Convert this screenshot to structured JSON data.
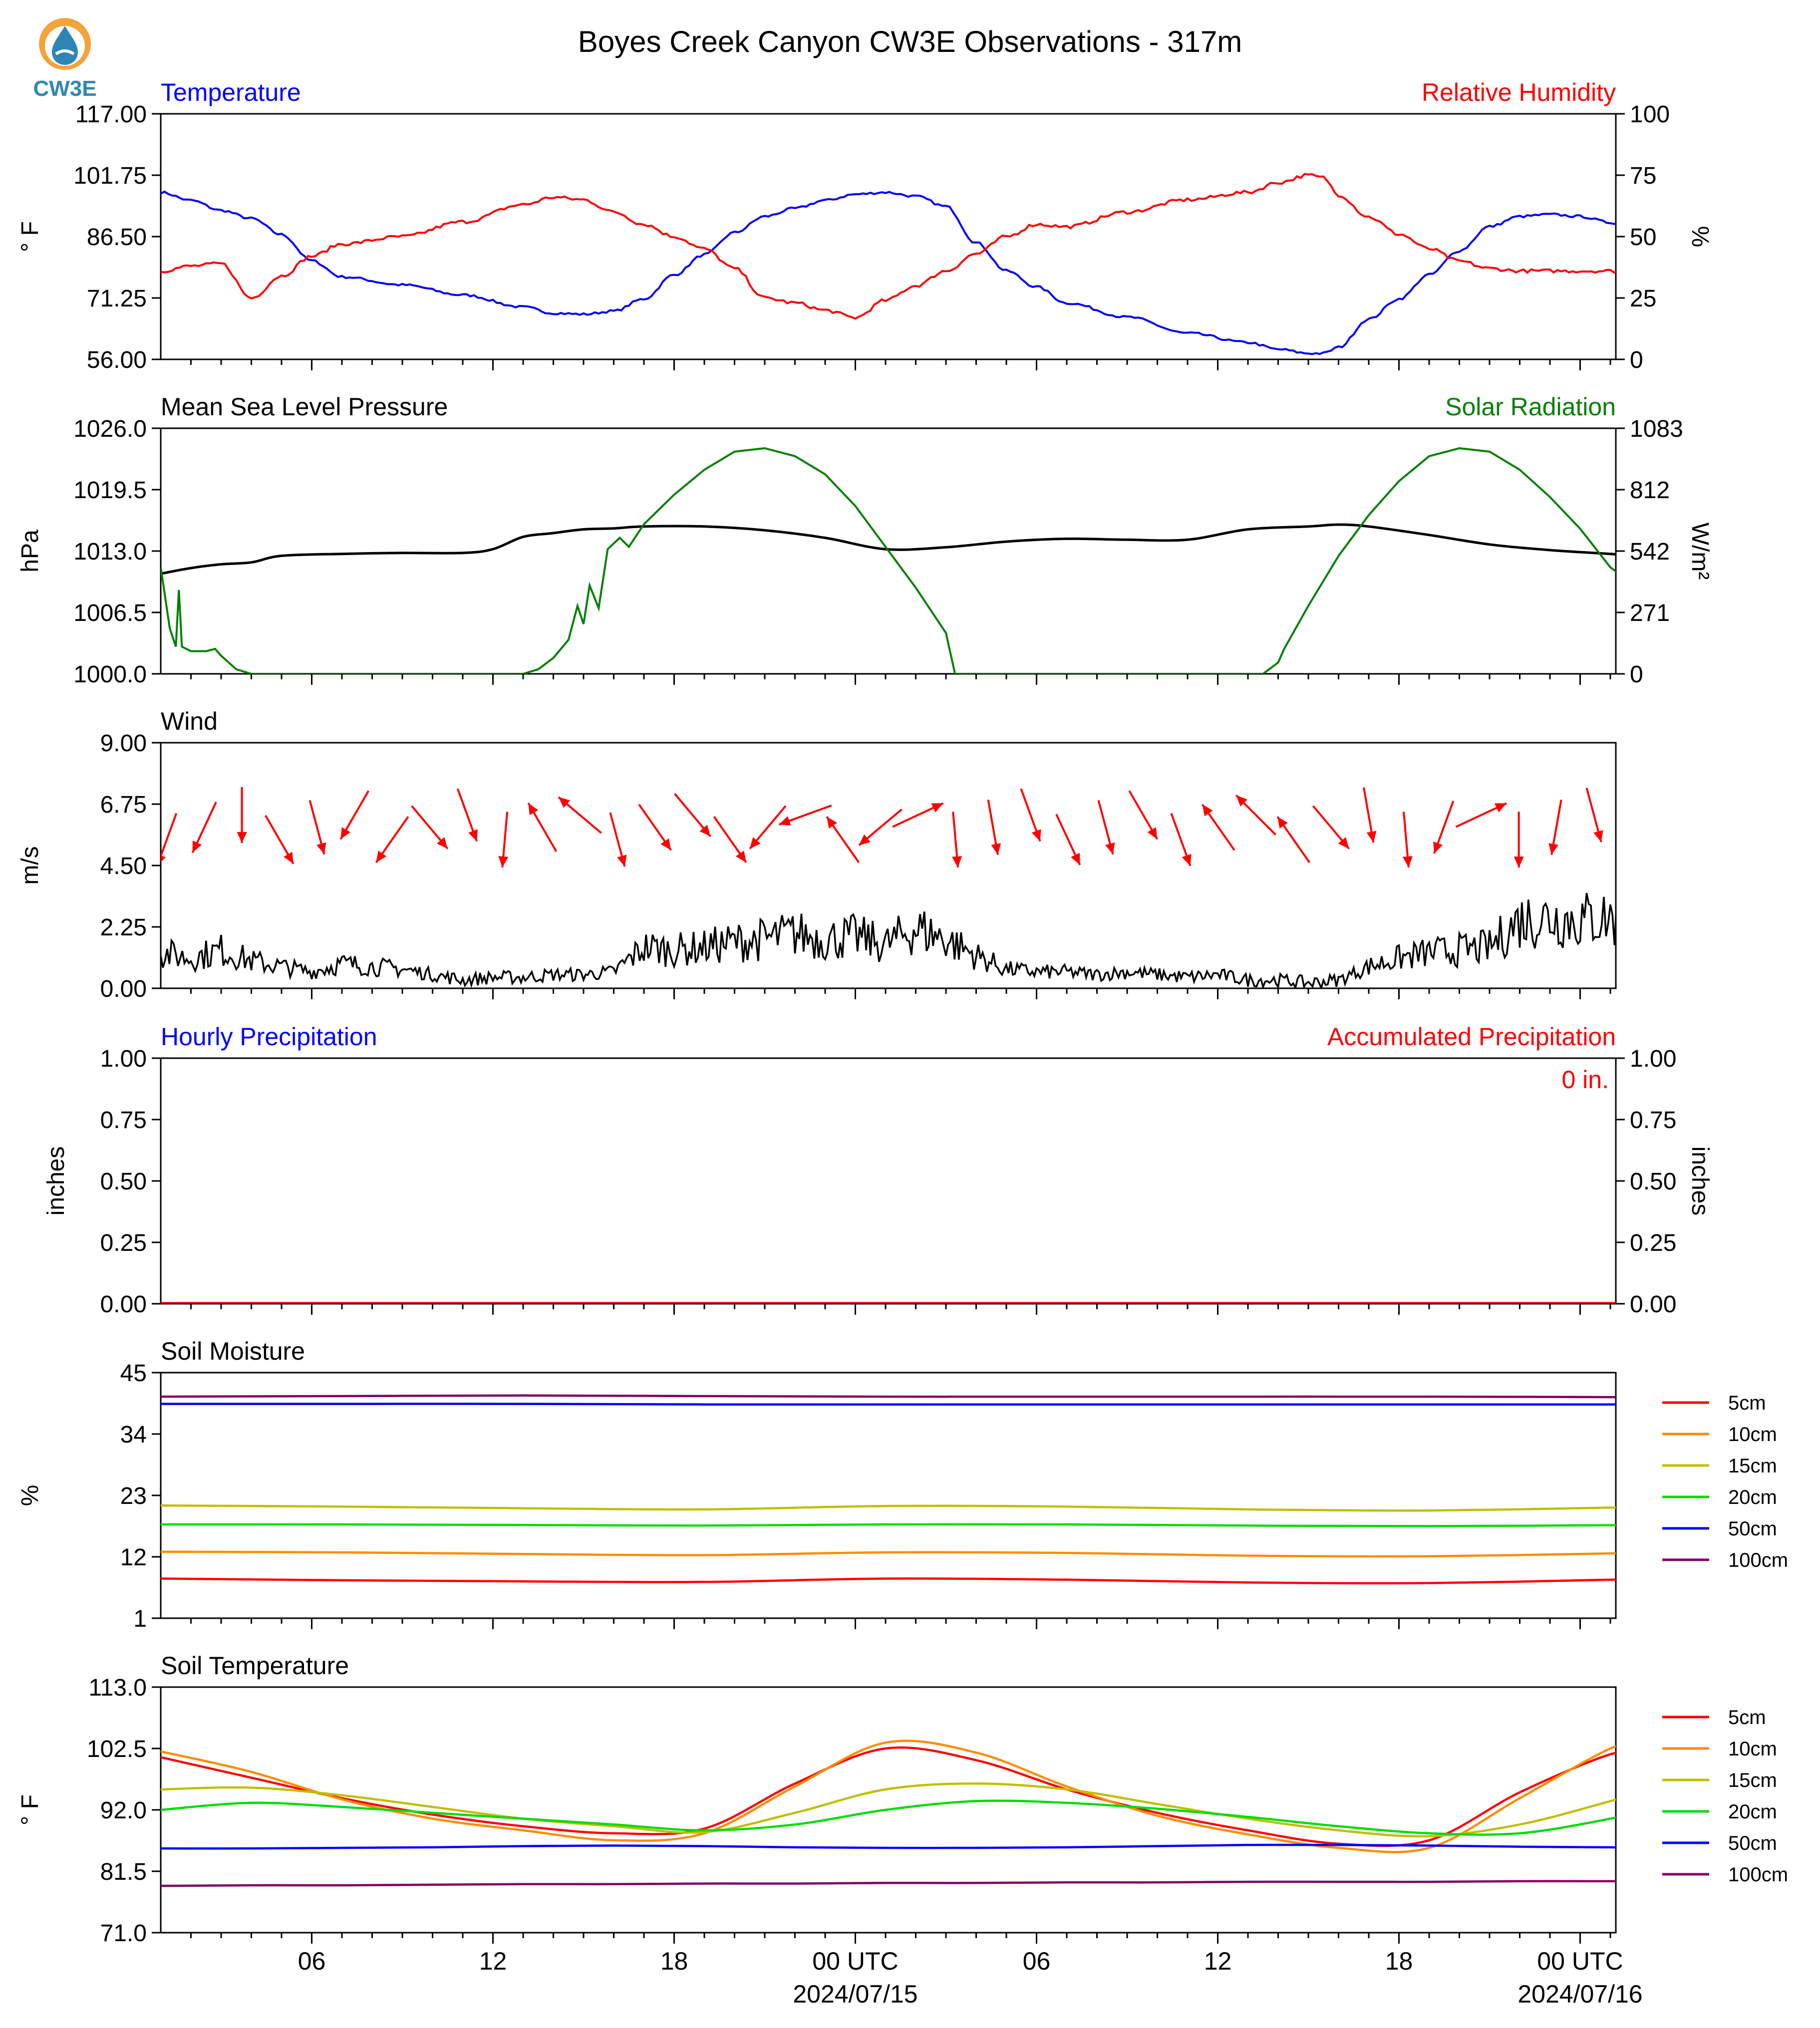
{
  "title": "Boyes Creek Canyon CW3E Observations - 317m",
  "logo": {
    "text": "CW3E",
    "icon": "cw3e-water-drop-logo",
    "colors": {
      "ring": "#f2a33a",
      "drop": "#2f86b6",
      "text": "#2f86b6"
    }
  },
  "x_axis": {
    "ticks": [
      "06",
      "12",
      "18",
      "00 UTC",
      "06",
      "12",
      "18",
      "00 UTC"
    ],
    "date_labels": [
      "2024/07/15",
      "2024/07/16"
    ]
  },
  "colors": {
    "temperature": "#0000ff",
    "humidity": "#ff0000",
    "pressure": "#000000",
    "solar": "#008000",
    "wind": "#000000",
    "wind_barb": "#ff0000"
  },
  "chart_data": [
    {
      "type": "line",
      "name": "temperature-humidity",
      "title_left": "Temperature",
      "title_right": "Relative Humidity",
      "ylabel_left": "° F",
      "ylabel_right": "%",
      "yticks_left": [
        "117.00",
        "101.75",
        "86.50",
        "71.25",
        "56.00"
      ],
      "yticks_right": [
        "100",
        "75",
        "50",
        "25",
        "0"
      ],
      "ylim_left": [
        56,
        117
      ],
      "ylim_right": [
        0,
        100
      ],
      "x_hours": [
        0,
        1,
        2,
        3,
        4,
        5,
        6,
        8,
        10,
        12,
        13,
        14,
        15,
        16,
        17,
        18,
        19,
        20,
        21,
        22,
        23,
        24,
        25,
        26,
        27,
        28,
        29,
        30,
        32,
        34,
        36,
        37,
        38,
        38.5,
        39,
        40,
        41,
        42,
        43,
        44,
        45,
        46,
        47,
        48,
        48.9
      ],
      "series": [
        {
          "name": "Temperature",
          "axis": "left",
          "values": [
            97.5,
            95.5,
            93,
            91,
            87,
            80.5,
            76.5,
            74.5,
            72,
            69,
            67.5,
            67.2,
            68,
            71,
            77,
            82,
            87.5,
            91.5,
            93.5,
            95.5,
            97,
            97.5,
            96.5,
            94,
            85,
            78,
            74,
            70,
            66.5,
            62.5,
            60.2,
            58.5,
            57.5,
            57.5,
            59,
            66,
            71,
            77,
            83,
            89,
            91.5,
            92,
            91.5,
            90,
            88.5
          ]
        },
        {
          "name": "Relative Humidity",
          "axis": "right",
          "values": [
            36,
            38,
            39,
            25,
            34,
            42,
            47,
            50,
            56,
            63,
            66,
            65,
            60,
            55,
            50,
            45,
            37,
            25,
            23,
            20,
            17,
            24,
            30,
            36,
            43,
            50,
            55,
            54,
            60,
            65,
            68,
            72,
            75,
            74,
            67,
            58,
            51,
            45,
            40,
            37,
            36,
            36,
            36,
            36,
            36
          ]
        }
      ]
    },
    {
      "type": "line",
      "name": "pressure-solar",
      "title_left": "Mean Sea Level Pressure",
      "title_right": "Solar Radiation",
      "ylabel_left": "hPa",
      "ylabel_right": "W/m²",
      "yticks_left": [
        "1026.0",
        "1019.5",
        "1013.0",
        "1006.5",
        "1000.0"
      ],
      "yticks_right": [
        "1083",
        "812",
        "542",
        "271",
        "0"
      ],
      "ylim_left": [
        1000,
        1026
      ],
      "ylim_right": [
        0,
        1083
      ],
      "x_hours": [
        0,
        1,
        2,
        3,
        4,
        6,
        8,
        10,
        11,
        12,
        13,
        14,
        15,
        16,
        18,
        20,
        22,
        24,
        26,
        28,
        30,
        32,
        34,
        36,
        38,
        39,
        40,
        42,
        44,
        46,
        48,
        48.9
      ],
      "series": [
        {
          "name": "Mean Sea Level Pressure",
          "axis": "left",
          "values": [
            1010.6,
            1011.2,
            1011.6,
            1011.8,
            1012.5,
            1012.7,
            1012.8,
            1012.8,
            1013.2,
            1014.5,
            1014.9,
            1015.3,
            1015.4,
            1015.6,
            1015.6,
            1015.2,
            1014.4,
            1013.2,
            1013.4,
            1014.0,
            1014.3,
            1014.2,
            1014.2,
            1015.3,
            1015.6,
            1015.8,
            1015.6,
            1014.7,
            1013.7,
            1013.1,
            1012.7,
            1012.5
          ]
        },
        {
          "name": "Solar Radiation",
          "axis": "right",
          "points": [
            [
              0,
              470
            ],
            [
              0.3,
              200
            ],
            [
              0.5,
              120
            ],
            [
              0.6,
              370
            ],
            [
              0.7,
              120
            ],
            [
              1,
              100
            ],
            [
              1.5,
              100
            ],
            [
              1.8,
              110
            ],
            [
              2,
              80
            ],
            [
              2.5,
              20
            ],
            [
              3,
              0
            ],
            [
              12,
              0
            ],
            [
              12.5,
              20
            ],
            [
              13,
              70
            ],
            [
              13.5,
              150
            ],
            [
              13.8,
              300
            ],
            [
              14,
              220
            ],
            [
              14.2,
              390
            ],
            [
              14.5,
              290
            ],
            [
              14.8,
              550
            ],
            [
              15.2,
              600
            ],
            [
              15.5,
              560
            ],
            [
              16,
              660
            ],
            [
              17,
              790
            ],
            [
              18,
              900
            ],
            [
              19,
              980
            ],
            [
              20,
              995
            ],
            [
              21,
              960
            ],
            [
              22,
              880
            ],
            [
              23,
              740
            ],
            [
              24,
              560
            ],
            [
              25,
              380
            ],
            [
              26,
              180
            ],
            [
              26.3,
              0
            ],
            [
              27,
              0
            ],
            [
              36.5,
              0
            ],
            [
              37,
              50
            ],
            [
              37.2,
              110
            ],
            [
              38,
              300
            ],
            [
              39,
              520
            ],
            [
              40,
              700
            ],
            [
              41,
              850
            ],
            [
              42,
              960
            ],
            [
              43,
              995
            ],
            [
              44,
              980
            ],
            [
              45,
              900
            ],
            [
              46,
              780
            ],
            [
              47,
              640
            ],
            [
              48,
              470
            ],
            [
              48.9,
              380
            ]
          ]
        }
      ]
    },
    {
      "type": "line",
      "name": "wind",
      "title_left": "Wind",
      "ylabel_left": "m/s",
      "yticks_left": [
        "9.00",
        "6.75",
        "4.50",
        "2.25",
        "0.00"
      ],
      "ylim_left": [
        0,
        9
      ],
      "x_hours": [
        0,
        1,
        2,
        3,
        4,
        5,
        6,
        7,
        8,
        9,
        10,
        11,
        12,
        13,
        14,
        15,
        16,
        17,
        18,
        19,
        20,
        21,
        22,
        23,
        24,
        25,
        26,
        27,
        28,
        29,
        30,
        31,
        32,
        33,
        34,
        35,
        36,
        37,
        38,
        39,
        40,
        41,
        42,
        43,
        44,
        45,
        46,
        47,
        48,
        48.9
      ],
      "series": [
        {
          "name": "Wind Speed",
          "axis": "left",
          "values": [
            1.3,
            1.1,
            1.4,
            1.0,
            0.8,
            0.6,
            0.9,
            0.8,
            0.7,
            0.5,
            0.3,
            0.4,
            0.4,
            0.5,
            0.5,
            0.6,
            1.5,
            1.4,
            1.5,
            1.7,
            1.8,
            2.0,
            1.8,
            1.9,
            1.6,
            2.2,
            1.8,
            1.2,
            0.7,
            0.6,
            0.6,
            0.5,
            0.6,
            0.5,
            0.4,
            0.5,
            0.3,
            0.3,
            0.2,
            0.3,
            0.8,
            1.1,
            1.3,
            1.4,
            1.5,
            2.5,
            2.6,
            2.5,
            2.6,
            2.2
          ]
        }
      ],
      "barbs_direction_deg": [
        250,
        245,
        270,
        300,
        285,
        240,
        235,
        310,
        290,
        265,
        120,
        140,
        285,
        305,
        310,
        305,
        230,
        200,
        125,
        220,
        25,
        275,
        280,
        290,
        295,
        285,
        300,
        290,
        125,
        135,
        125,
        310,
        280,
        275,
        250,
        25,
        270,
        260,
        285,
        280
      ]
    },
    {
      "type": "bar",
      "name": "precipitation",
      "title_left": "Hourly Precipitation",
      "title_right": "Accumulated Precipitation",
      "ylabel_left": "inches",
      "ylabel_right": "inches",
      "yticks_left": [
        "1.00",
        "0.75",
        "0.50",
        "0.25",
        "0.00"
      ],
      "yticks_right": [
        "1.00",
        "0.75",
        "0.50",
        "0.25",
        "0.00"
      ],
      "ylim_left": [
        0,
        1
      ],
      "ylim_right": [
        0,
        1
      ],
      "annotation": "0 in.",
      "series": [
        {
          "name": "Hourly Precipitation",
          "axis": "left",
          "values": [
            0
          ]
        },
        {
          "name": "Accumulated Precipitation",
          "axis": "right",
          "values": [
            0
          ]
        }
      ]
    },
    {
      "type": "line",
      "name": "soil-moisture",
      "title_left": "Soil Moisture",
      "ylabel_left": "%",
      "yticks_left": [
        "45",
        "34",
        "23",
        "12",
        "1"
      ],
      "ylim_left": [
        1,
        45
      ],
      "x_hours": [
        0,
        6,
        12,
        18,
        24,
        30,
        36,
        42,
        48.9
      ],
      "legend": [
        "5cm",
        "10cm",
        "15cm",
        "20cm",
        "50cm",
        "100cm"
      ],
      "series": [
        {
          "name": "5cm",
          "color": "#ff0000",
          "values": [
            8.1,
            7.8,
            7.6,
            7.5,
            8.1,
            7.9,
            7.4,
            7.3,
            8.0
          ]
        },
        {
          "name": "10cm",
          "color": "#ff8c00",
          "values": [
            12.9,
            12.8,
            12.5,
            12.3,
            12.8,
            12.7,
            12.2,
            12.1,
            12.7
          ]
        },
        {
          "name": "15cm",
          "color": "#bfbf00",
          "values": [
            21.2,
            21.0,
            20.7,
            20.5,
            21.1,
            21.0,
            20.5,
            20.3,
            20.9
          ]
        },
        {
          "name": "20cm",
          "color": "#00dd00",
          "values": [
            17.8,
            17.8,
            17.7,
            17.6,
            17.8,
            17.8,
            17.6,
            17.5,
            17.7
          ]
        },
        {
          "name": "50cm",
          "color": "#0000ff",
          "values": [
            39.4,
            39.4,
            39.4,
            39.3,
            39.3,
            39.3,
            39.3,
            39.3,
            39.3
          ]
        },
        {
          "name": "100cm",
          "color": "#800060",
          "values": [
            40.7,
            40.8,
            40.9,
            40.8,
            40.7,
            40.7,
            40.7,
            40.7,
            40.6
          ]
        }
      ]
    },
    {
      "type": "line",
      "name": "soil-temperature",
      "title_left": "Soil Temperature",
      "ylabel_left": "° F",
      "yticks_left": [
        "113.0",
        "102.5",
        "92.0",
        "81.5",
        "71.0"
      ],
      "ylim_left": [
        71,
        113
      ],
      "x_hours": [
        0,
        3,
        6,
        9,
        12,
        15,
        18,
        21,
        24,
        27,
        30,
        33,
        36,
        39,
        42,
        45,
        48,
        48.9
      ],
      "legend": [
        "5cm",
        "10cm",
        "15cm",
        "20cm",
        "50cm",
        "100cm"
      ],
      "series": [
        {
          "name": "5cm",
          "color": "#ff0000",
          "values": [
            101.0,
            97.5,
            94.0,
            91.2,
            89.2,
            88.0,
            88.8,
            96.5,
            102.5,
            100.5,
            95.5,
            91.5,
            88.5,
            86.2,
            86.8,
            95.0,
            101.5,
            101.0
          ]
        },
        {
          "name": "10cm",
          "color": "#ff8c00",
          "values": [
            102.0,
            98.5,
            93.8,
            90.5,
            88.5,
            86.8,
            88.0,
            96.0,
            103.5,
            101.8,
            96.0,
            91.0,
            87.8,
            85.5,
            85.5,
            94.0,
            102.5,
            102.8
          ]
        },
        {
          "name": "15cm",
          "color": "#bfbf00",
          "values": [
            95.5,
            95.8,
            94.5,
            92.5,
            90.5,
            89.2,
            88.2,
            91.5,
            95.5,
            96.5,
            95.5,
            93.0,
            90.5,
            88.5,
            87.5,
            89.5,
            93.5,
            95.0
          ]
        },
        {
          "name": "20cm",
          "color": "#00dd00",
          "values": [
            92.0,
            93.2,
            92.5,
            91.5,
            90.5,
            89.5,
            88.5,
            89.5,
            92.0,
            93.5,
            93.2,
            92.2,
            90.8,
            89.2,
            88.0,
            88.0,
            90.5,
            91.8
          ]
        },
        {
          "name": "50cm",
          "color": "#0000ff",
          "values": [
            85.4,
            85.4,
            85.5,
            85.6,
            85.8,
            85.9,
            85.8,
            85.6,
            85.5,
            85.5,
            85.6,
            85.8,
            86.0,
            86.0,
            85.9,
            85.7,
            85.6,
            85.5
          ]
        },
        {
          "name": "100cm",
          "color": "#800060",
          "values": [
            79.0,
            79.1,
            79.1,
            79.2,
            79.3,
            79.3,
            79.4,
            79.4,
            79.5,
            79.5,
            79.6,
            79.6,
            79.7,
            79.7,
            79.7,
            79.8,
            79.8,
            79.8
          ]
        }
      ]
    }
  ]
}
